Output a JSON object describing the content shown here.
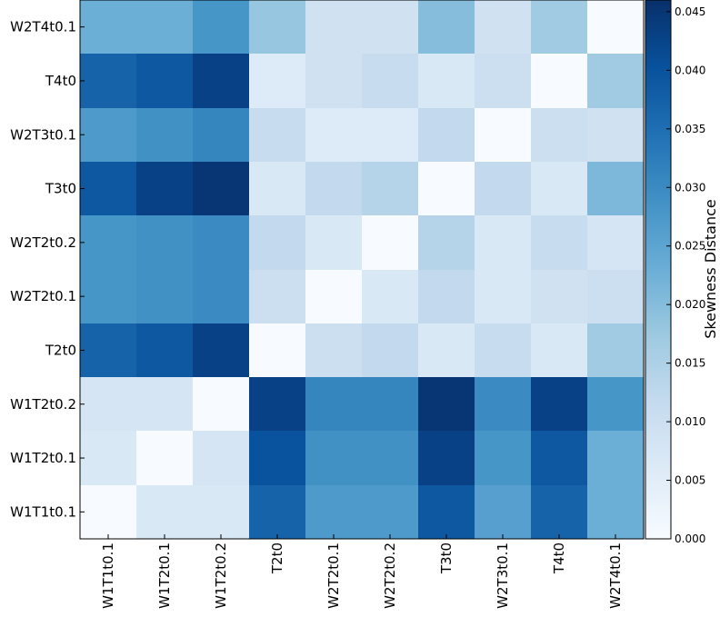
{
  "chart_data": {
    "type": "heatmap",
    "title": "",
    "xlabel": "",
    "ylabel": "",
    "x_categories": [
      "W1T1t0.1",
      "W1T2t0.1",
      "W1T2t0.2",
      "T2t0",
      "W2T2t0.1",
      "W2T2t0.2",
      "T3t0",
      "W2T3t0.1",
      "T4t0",
      "W2T4t0.1"
    ],
    "y_categories_top_to_bottom": [
      "W2T4t0.1",
      "T4t0",
      "W2T3t0.1",
      "T3t0",
      "W2T2t0.2",
      "W2T2t0.1",
      "T2t0",
      "W1T2t0.2",
      "W1T2t0.1",
      "W1T1t0.1"
    ],
    "values_top_to_bottom": [
      [
        0.023,
        0.023,
        0.028,
        0.018,
        0.009,
        0.009,
        0.02,
        0.009,
        0.017,
        0.0
      ],
      [
        0.037,
        0.039,
        0.043,
        0.006,
        0.009,
        0.011,
        0.007,
        0.01,
        0.0,
        0.017
      ],
      [
        0.027,
        0.029,
        0.031,
        0.011,
        0.006,
        0.006,
        0.012,
        0.0,
        0.01,
        0.009
      ],
      [
        0.039,
        0.043,
        0.045,
        0.007,
        0.012,
        0.014,
        0.0,
        0.012,
        0.007,
        0.021
      ],
      [
        0.028,
        0.029,
        0.03,
        0.012,
        0.007,
        0.0,
        0.014,
        0.007,
        0.011,
        0.008
      ],
      [
        0.028,
        0.029,
        0.03,
        0.01,
        0.0,
        0.007,
        0.012,
        0.007,
        0.009,
        0.01
      ],
      [
        0.037,
        0.039,
        0.043,
        0.0,
        0.01,
        0.012,
        0.007,
        0.011,
        0.007,
        0.017
      ],
      [
        0.008,
        0.008,
        0.0,
        0.043,
        0.031,
        0.031,
        0.045,
        0.03,
        0.043,
        0.028
      ],
      [
        0.007,
        0.0,
        0.008,
        0.04,
        0.029,
        0.029,
        0.043,
        0.028,
        0.039,
        0.023
      ],
      [
        0.0,
        0.007,
        0.007,
        0.037,
        0.027,
        0.027,
        0.039,
        0.026,
        0.037,
        0.023
      ]
    ],
    "colormap": "Blues",
    "colorbar": {
      "label": "Skewness Distance",
      "range": [
        0,
        0.046
      ],
      "ticks": [
        "0.000",
        "0.005",
        "0.010",
        "0.015",
        "0.020",
        "0.025",
        "0.030",
        "0.035",
        "0.040",
        "0.045"
      ]
    }
  }
}
